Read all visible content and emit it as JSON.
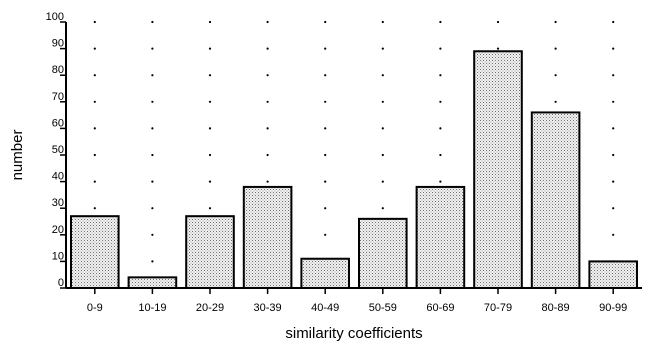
{
  "chart_data": {
    "type": "bar",
    "categories": [
      "0-9",
      "10-19",
      "20-29",
      "30-39",
      "40-49",
      "50-59",
      "60-69",
      "70-79",
      "80-89",
      "90-99"
    ],
    "values": [
      27,
      4,
      27,
      38,
      11,
      26,
      38,
      89,
      66,
      10
    ],
    "xlabel": "similarity  coefficients",
    "ylabel": "number",
    "ylim": [
      0,
      100
    ],
    "yticks": [
      "0",
      "10",
      "20",
      "30",
      "40",
      "50",
      "60",
      "70",
      "80",
      "90",
      "100"
    ],
    "grid": "dotted",
    "bar_fill": "stippled"
  },
  "colors": {
    "bar_outline": "#000000",
    "bar_fill_background": "#f2f2f2",
    "stipple_dot": "#6e6e6e"
  }
}
